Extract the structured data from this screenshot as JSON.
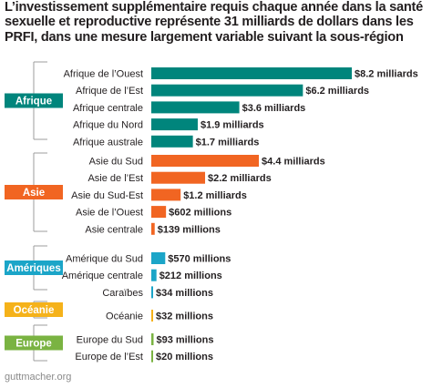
{
  "title": "L’investissement supplémentaire requis chaque année dans la santé sexuelle et reproductive représente 31 milliards de dollars dans les PRFI, dans une mesure largement variable suivant la sous-région",
  "source": "guttmacher.org",
  "chart_data": {
    "type": "bar",
    "orientation": "horizontal",
    "unit": "USD millions",
    "grid": false,
    "groups": [
      {
        "name": "Afrique",
        "color": "#00857c",
        "items": [
          {
            "category": "Afrique de l’Ouest",
            "value": 8200,
            "label": "$8.2 milliards"
          },
          {
            "category": "Afrique de l’Est",
            "value": 6200,
            "label": "$6.2 milliards"
          },
          {
            "category": "Afrique centrale",
            "value": 3600,
            "label": "$3.6 milliards"
          },
          {
            "category": "Afrique du Nord",
            "value": 1900,
            "label": "$1.9 milliards"
          },
          {
            "category": "Afrique australe",
            "value": 1700,
            "label": "$1.7 milliards"
          }
        ]
      },
      {
        "name": "Asie",
        "color": "#f16522",
        "items": [
          {
            "category": "Asie du Sud",
            "value": 4400,
            "label": "$4.4 milliards"
          },
          {
            "category": "Asie de l’Est",
            "value": 2200,
            "label": "$2.2 milliards"
          },
          {
            "category": "Asie du Sud-Est",
            "value": 1200,
            "label": "$1.2 milliards"
          },
          {
            "category": "Asie de l’Ouest",
            "value": 602,
            "label": "$602 millions"
          },
          {
            "category": "Asie centrale",
            "value": 139,
            "label": "$139 millions"
          }
        ]
      },
      {
        "name": "Amériques",
        "color": "#1ba5c8",
        "items": [
          {
            "category": "Amérique du Sud",
            "value": 570,
            "label": "$570 millions"
          },
          {
            "category": "Amérique centrale",
            "value": 212,
            "label": "$212 millions"
          },
          {
            "category": "Caraïbes",
            "value": 34,
            "label": "$34 millions"
          }
        ]
      },
      {
        "name": "Océanie",
        "color": "#f5b21a",
        "items": [
          {
            "category": "Océanie",
            "value": 32,
            "label": "$32 millions"
          }
        ]
      },
      {
        "name": "Europe",
        "color": "#7ab342",
        "items": [
          {
            "category": "Europe du Sud",
            "value": 93,
            "label": "$93 millions"
          },
          {
            "category": "Europe de l’Est",
            "value": 20,
            "label": "$20 millions"
          }
        ]
      }
    ]
  }
}
